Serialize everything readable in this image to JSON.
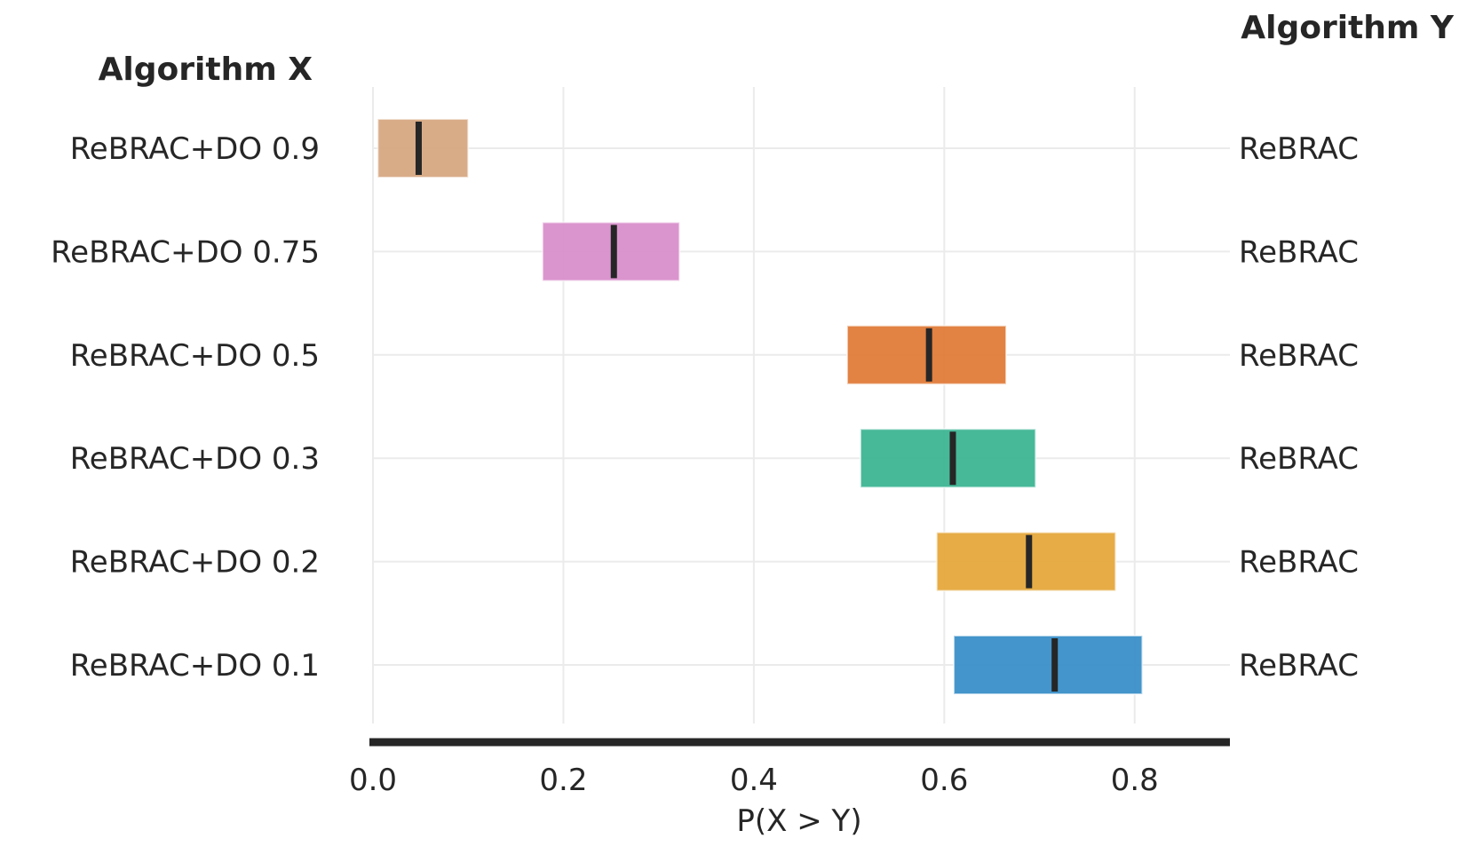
{
  "chart_data": {
    "type": "interval",
    "title": "",
    "xlabel": "P(X > Y)",
    "x_header": "Algorithm X",
    "y_header": "Algorithm Y",
    "xlim": [
      0.0,
      0.9
    ],
    "xticks": [
      "0.0",
      "0.2",
      "0.4",
      "0.6",
      "0.8"
    ],
    "grid": true,
    "rows": [
      {
        "algorithm_x": "ReBRAC+DO 0.9",
        "algorithm_y": "ReBRAC",
        "low": 0.005,
        "high": 0.1,
        "point": 0.048,
        "color": "#d7a882"
      },
      {
        "algorithm_x": "ReBRAC+DO 0.75",
        "algorithm_y": "ReBRAC",
        "low": 0.178,
        "high": 0.322,
        "point": 0.253,
        "color": "#d98fcb"
      },
      {
        "algorithm_x": "ReBRAC+DO 0.5",
        "algorithm_y": "ReBRAC",
        "low": 0.498,
        "high": 0.665,
        "point": 0.584,
        "color": "#e07b39"
      },
      {
        "algorithm_x": "ReBRAC+DO 0.3",
        "algorithm_y": "ReBRAC",
        "low": 0.512,
        "high": 0.696,
        "point": 0.609,
        "color": "#3db593"
      },
      {
        "algorithm_x": "ReBRAC+DO 0.2",
        "algorithm_y": "ReBRAC",
        "low": 0.592,
        "high": 0.78,
        "point": 0.689,
        "color": "#e6a83c"
      },
      {
        "algorithm_x": "ReBRAC+DO 0.1",
        "algorithm_y": "ReBRAC",
        "low": 0.61,
        "high": 0.808,
        "point": 0.716,
        "color": "#3a8fc8"
      }
    ]
  }
}
